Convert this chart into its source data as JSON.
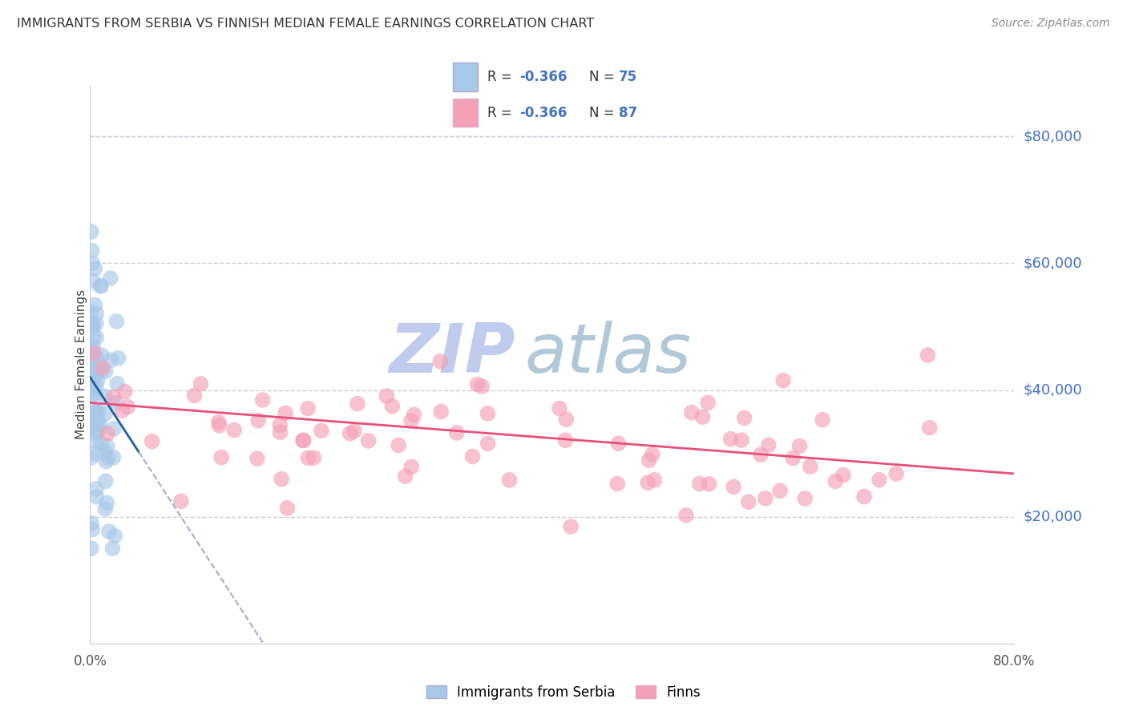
{
  "title": "IMMIGRANTS FROM SERBIA VS FINNISH MEDIAN FEMALE EARNINGS CORRELATION CHART",
  "source": "Source: ZipAtlas.com",
  "ylabel": "Median Female Earnings",
  "y_tick_labels": [
    "$20,000",
    "$40,000",
    "$60,000",
    "$80,000"
  ],
  "y_tick_values": [
    20000,
    40000,
    60000,
    80000
  ],
  "ylim": [
    0,
    88000
  ],
  "xlim": [
    0.0,
    0.8
  ],
  "legend_series1": "Immigrants from Serbia",
  "legend_series2": "Finns",
  "r1": "-0.366",
  "n1": "75",
  "r2": "-0.366",
  "n2": "87",
  "color_blue": "#a8c8e8",
  "color_pink": "#f4a0b8",
  "color_blue_line": "#2060a0",
  "color_pink_line": "#e8507a",
  "color_dashed": "#aaaacc",
  "background_color": "#ffffff",
  "grid_color": "#ccccdd",
  "watermark_zip": "ZIP",
  "watermark_atlas": "atlas",
  "watermark_color_zip": "#c0ccee",
  "watermark_color_atlas": "#b0c8d8",
  "legend_r_color": "#333333",
  "legend_val_color": "#4472c4",
  "legend_n_color": "#333333",
  "right_label_color": "#4472c4",
  "title_color": "#333333",
  "source_color": "#888888"
}
